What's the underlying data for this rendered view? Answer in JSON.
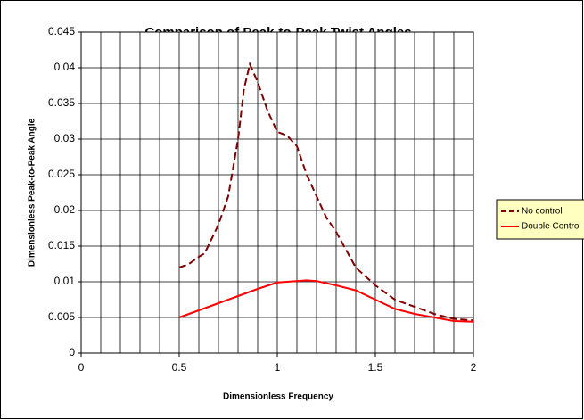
{
  "chart_data": {
    "type": "line",
    "title": "Comparison of Peak-to-Peak Twist Angles",
    "xlabel": "Dimensionless Frequency",
    "ylabel": "Dimensionless Peak-to-Peak Angle",
    "xlim": [
      0,
      2
    ],
    "ylim": [
      0,
      0.045
    ],
    "xticks": [
      0,
      0.5,
      1,
      1.5,
      2
    ],
    "xgridlines": [
      0,
      0.1,
      0.2,
      0.3,
      0.4,
      0.5,
      0.6,
      0.7,
      0.8,
      0.9,
      1,
      1.1,
      1.2,
      1.3,
      1.4,
      1.5,
      1.6,
      1.7,
      1.8,
      1.9,
      2
    ],
    "yticks": [
      0,
      0.005,
      0.01,
      0.015,
      0.02,
      0.025,
      0.03,
      0.035,
      0.04,
      0.045
    ],
    "grid": true,
    "legend": "right",
    "series": [
      {
        "name": "No control",
        "color": "#800000",
        "dashed": true,
        "x": [
          0.5,
          0.55,
          0.6,
          0.63,
          0.7,
          0.75,
          0.8,
          0.83,
          0.86,
          0.9,
          0.95,
          1.0,
          1.05,
          1.1,
          1.15,
          1.2,
          1.25,
          1.3,
          1.35,
          1.4,
          1.5,
          1.6,
          1.7,
          1.8,
          1.9,
          2.0
        ],
        "values": [
          0.012,
          0.0125,
          0.0135,
          0.014,
          0.018,
          0.022,
          0.03,
          0.037,
          0.0405,
          0.038,
          0.034,
          0.031,
          0.0305,
          0.029,
          0.025,
          0.022,
          0.019,
          0.017,
          0.0145,
          0.012,
          0.0095,
          0.0075,
          0.0065,
          0.0055,
          0.0048,
          0.0046
        ]
      },
      {
        "name": "Double Contro",
        "color": "#ff0000",
        "dashed": false,
        "x": [
          0.5,
          0.6,
          0.7,
          0.8,
          0.9,
          1.0,
          1.1,
          1.15,
          1.2,
          1.3,
          1.4,
          1.5,
          1.6,
          1.7,
          1.8,
          1.9,
          2.0
        ],
        "values": [
          0.005,
          0.006,
          0.007,
          0.008,
          0.009,
          0.0099,
          0.0101,
          0.0102,
          0.0101,
          0.0095,
          0.0088,
          0.0075,
          0.0062,
          0.0055,
          0.005,
          0.0045,
          0.0044
        ]
      }
    ]
  }
}
